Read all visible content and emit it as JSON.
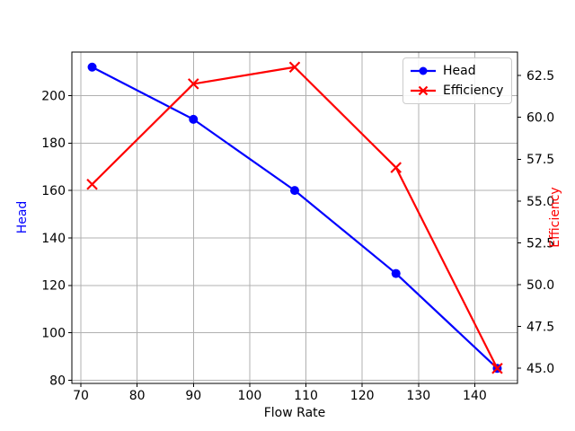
{
  "chart_data": {
    "type": "line",
    "xlabel": "Flow Rate",
    "ylabel_left": "Head",
    "ylabel_right": "Efficiency",
    "x": [
      72,
      90,
      108,
      126,
      144
    ],
    "series": [
      {
        "name": "Head",
        "axis": "left",
        "color": "#0000ff",
        "marker": "circle",
        "values": [
          212,
          190,
          160,
          125,
          85
        ]
      },
      {
        "name": "Efficiency",
        "axis": "right",
        "color": "#ff0000",
        "marker": "x",
        "values": [
          56,
          62,
          63,
          57,
          45
        ]
      }
    ],
    "x_axis": {
      "min": 68.4,
      "max": 147.6,
      "tick_labels": [
        "70",
        "80",
        "90",
        "100",
        "110",
        "120",
        "130",
        "140"
      ]
    },
    "left_axis": {
      "min": 78.65,
      "max": 218.35,
      "tick_labels": [
        "80",
        "100",
        "120",
        "140",
        "160",
        "180",
        "200"
      ]
    },
    "right_axis": {
      "min": 44.1,
      "max": 63.9,
      "tick_labels": [
        "45.0",
        "47.5",
        "50.0",
        "52.5",
        "55.0",
        "57.5",
        "60.0",
        "62.5"
      ]
    },
    "grid": true,
    "legend": {
      "position": "upper right"
    },
    "colors": {
      "grid": "#b0b0b0",
      "spine": "#000000",
      "tick_text": "#000000",
      "background": "#ffffff"
    }
  }
}
